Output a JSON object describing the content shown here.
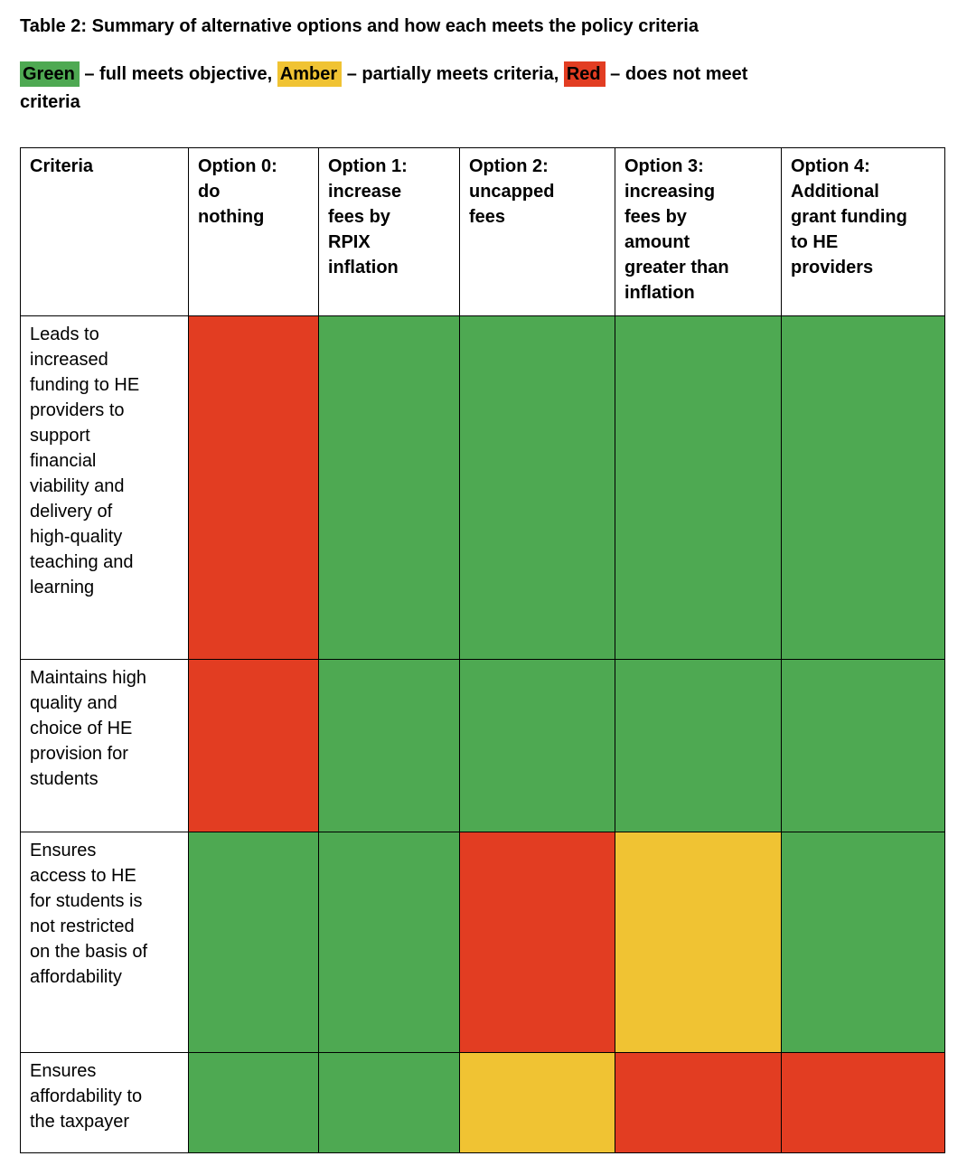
{
  "title": "Table 2: Summary of alternative options and how each meets the policy criteria",
  "legend": {
    "segments": [
      {
        "text": "Green",
        "status": "green"
      },
      {
        "text": " – full meets objective, "
      },
      {
        "text": "Amber",
        "status": "amber"
      },
      {
        "text": " – partially meets criteria, "
      },
      {
        "text": "Red",
        "status": "red"
      },
      {
        "text": " – does not meet\ncriteria"
      }
    ]
  },
  "colors": {
    "green": "#4EA952",
    "amber": "#F0C333",
    "red": "#E23D22"
  },
  "table": {
    "columns": [
      {
        "label": "Criteria"
      },
      {
        "label": "Option 0:\ndo\nnothing"
      },
      {
        "label": "Option 1:\nincrease\nfees by\nRPIX\ninflation"
      },
      {
        "label": "Option 2:\nuncapped\nfees"
      },
      {
        "label": "Option 3:\nincreasing\nfees by\namount\ngreater than\ninflation"
      },
      {
        "label": "Option 4:\nAdditional\ngrant funding\nto HE\nproviders"
      }
    ],
    "rows": [
      {
        "criteria": "Leads to\nincreased\nfunding to HE\nproviders to\nsupport\nfinancial\nviability and\ndelivery of\nhigh-quality\nteaching and\nlearning",
        "cells": [
          "red",
          "green",
          "green",
          "green",
          "green"
        ]
      },
      {
        "criteria": "Maintains high\nquality and\nchoice of HE\nprovision for\nstudents",
        "cells": [
          "red",
          "green",
          "green",
          "green",
          "green"
        ]
      },
      {
        "criteria": "Ensures\naccess to HE\nfor students is\nnot restricted\non the basis of\naffordability",
        "cells": [
          "green",
          "green",
          "red",
          "amber",
          "green"
        ]
      },
      {
        "criteria": "Ensures\naffordability to\nthe taxpayer",
        "cells": [
          "green",
          "green",
          "amber",
          "red",
          "red"
        ]
      }
    ]
  }
}
